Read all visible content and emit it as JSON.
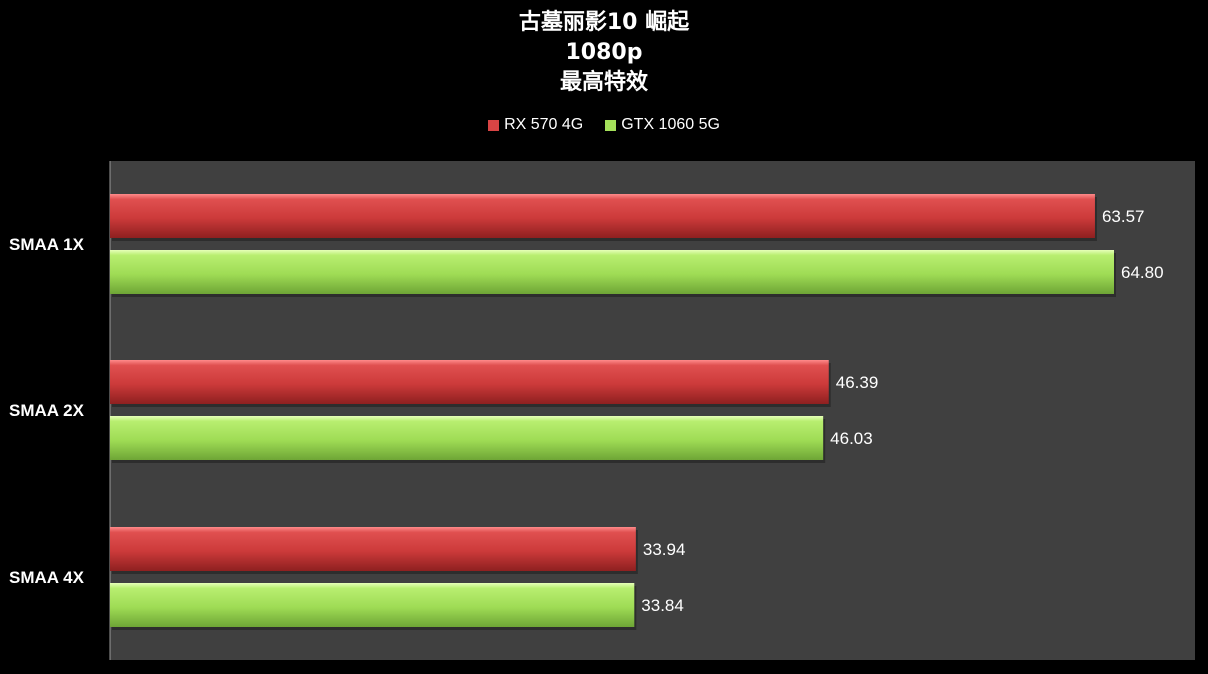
{
  "chart_data": {
    "type": "bar",
    "orientation": "horizontal",
    "title_lines": [
      "古墓丽影10 崛起",
      "1080p",
      "最高特效"
    ],
    "categories": [
      "SMAA 1X",
      "SMAA 2X",
      "SMAA 4X"
    ],
    "series": [
      {
        "name": "RX 570 4G",
        "color": "#d84444",
        "values": [
          63.57,
          46.39,
          33.94
        ],
        "labels": [
          "63.57",
          "46.39",
          "33.94"
        ]
      },
      {
        "name": "GTX 1060 5G",
        "color": "#a4e05a",
        "values": [
          64.8,
          46.03,
          33.84
        ],
        "labels": [
          "64.80",
          "46.03",
          "33.84"
        ]
      }
    ],
    "xlim": [
      0,
      70
    ],
    "legend_position": "top",
    "grid": false,
    "plot_background": "#404040",
    "page_background": "#000000"
  }
}
